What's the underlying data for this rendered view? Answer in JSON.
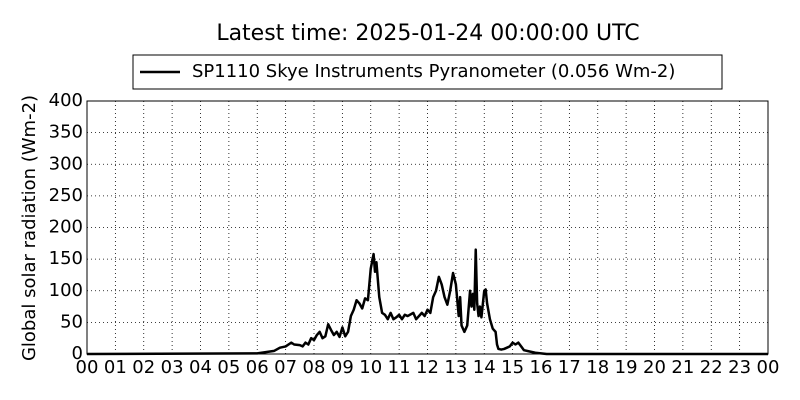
{
  "chart_data": {
    "type": "line",
    "title": "Latest time: 2025-01-24 00:00:00 UTC",
    "y_label": "Global solar radiation (Wm-2)",
    "grid": true,
    "xlim": [
      0,
      24
    ],
    "ylim": [
      0,
      400
    ],
    "yticks": [
      0,
      50,
      100,
      150,
      200,
      250,
      300,
      350,
      400
    ],
    "xticks": [
      {
        "value": 0,
        "label": "00"
      },
      {
        "value": 1,
        "label": "01"
      },
      {
        "value": 2,
        "label": "02"
      },
      {
        "value": 3,
        "label": "03"
      },
      {
        "value": 4,
        "label": "04"
      },
      {
        "value": 5,
        "label": "05"
      },
      {
        "value": 6,
        "label": "06"
      },
      {
        "value": 7,
        "label": "07"
      },
      {
        "value": 8,
        "label": "08"
      },
      {
        "value": 9,
        "label": "09"
      },
      10,
      11,
      12,
      13,
      14,
      15,
      16,
      17,
      18,
      19,
      20,
      21,
      22,
      23,
      {
        "value": 24,
        "label": "00"
      }
    ],
    "x": [
      0,
      6.0,
      6.3,
      6.6,
      6.8,
      7.0,
      7.2,
      7.3,
      7.5,
      7.6,
      7.7,
      7.8,
      7.9,
      8.0,
      8.1,
      8.2,
      8.3,
      8.4,
      8.5,
      8.6,
      8.7,
      8.8,
      8.9,
      9.0,
      9.1,
      9.2,
      9.3,
      9.4,
      9.5,
      9.6,
      9.7,
      9.8,
      9.9,
      10.0,
      10.1,
      10.15,
      10.2,
      10.3,
      10.4,
      10.5,
      10.6,
      10.7,
      10.8,
      10.9,
      11.0,
      11.1,
      11.2,
      11.3,
      11.5,
      11.6,
      11.8,
      11.9,
      12.0,
      12.1,
      12.2,
      12.3,
      12.4,
      12.5,
      12.6,
      12.7,
      12.8,
      12.9,
      13.0,
      13.1,
      13.15,
      13.2,
      13.3,
      13.4,
      13.5,
      13.55,
      13.6,
      13.65,
      13.7,
      13.75,
      13.8,
      13.85,
      13.9,
      14.0,
      14.05,
      14.1,
      14.2,
      14.3,
      14.4,
      14.45,
      14.5,
      14.6,
      14.7,
      14.8,
      14.9,
      15.0,
      15.1,
      15.2,
      15.3,
      15.4,
      15.6,
      15.8,
      16.0,
      16.2,
      24
    ],
    "series": [
      {
        "name": "SP1110 Skye Instruments Pyranometer (0.056 Wm-2)",
        "color": "#000000",
        "values": [
          0,
          1,
          3,
          5,
          10,
          12,
          18,
          15,
          14,
          12,
          18,
          15,
          25,
          22,
          30,
          35,
          25,
          28,
          47,
          38,
          30,
          35,
          27,
          42,
          28,
          35,
          60,
          70,
          85,
          80,
          72,
          88,
          85,
          135,
          158,
          130,
          145,
          90,
          65,
          62,
          55,
          65,
          55,
          58,
          62,
          55,
          62,
          60,
          65,
          55,
          65,
          60,
          70,
          65,
          90,
          100,
          122,
          110,
          90,
          78,
          100,
          128,
          110,
          60,
          90,
          45,
          35,
          45,
          100,
          75,
          95,
          70,
          165,
          80,
          60,
          75,
          58,
          100,
          102,
          80,
          55,
          40,
          35,
          15,
          8,
          7,
          8,
          10,
          12,
          18,
          15,
          18,
          12,
          6,
          4,
          2,
          1,
          0,
          0
        ]
      }
    ]
  }
}
